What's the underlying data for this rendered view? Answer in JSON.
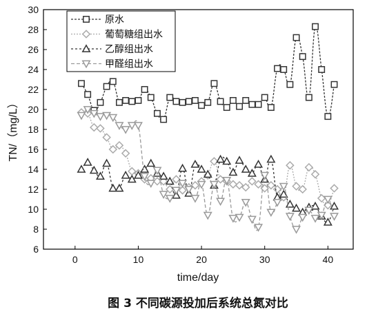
{
  "chart_data": {
    "type": "line",
    "xlabel": "time/day",
    "ylabel": "TN/（mg/L）",
    "xlim": [
      -5,
      44
    ],
    "ylim": [
      6,
      30
    ],
    "xticks": [
      0,
      10,
      20,
      30,
      40
    ],
    "yticks": [
      6,
      8,
      10,
      12,
      14,
      16,
      18,
      20,
      22,
      24,
      26,
      28,
      30
    ],
    "legend_position": "top-left",
    "caption": "图 3  不同碳源投加后系统总氮对比",
    "series": [
      {
        "name": "原水",
        "marker": "square",
        "color": "#333333",
        "dash": "3,2",
        "x": [
          1,
          2,
          3,
          4,
          5,
          6,
          7,
          8,
          9,
          10,
          11,
          12,
          13,
          14,
          15,
          16,
          17,
          18,
          19,
          20,
          21,
          22,
          23,
          24,
          25,
          26,
          27,
          28,
          29,
          30,
          31,
          32,
          33,
          34,
          35,
          36,
          37,
          38,
          39,
          40,
          41
        ],
        "y": [
          22.6,
          21.5,
          19.9,
          20.7,
          22.3,
          22.8,
          20.7,
          20.9,
          20.8,
          20.9,
          22.0,
          21.2,
          19.6,
          19.0,
          21.2,
          20.8,
          20.7,
          20.8,
          20.9,
          20.4,
          20.7,
          22.6,
          20.8,
          20.2,
          20.9,
          20.3,
          20.9,
          20.5,
          20.5,
          21.2,
          20.2,
          24.1,
          24.0,
          22.5,
          27.2,
          25.3,
          21.2,
          28.3,
          24.0,
          19.3,
          22.5
        ]
      },
      {
        "name": "葡萄糖组出水",
        "marker": "diamond",
        "color": "#aaaaaa",
        "dash": "2,2",
        "x": [
          1,
          2,
          3,
          4,
          5,
          6,
          7,
          8,
          9,
          10,
          11,
          12,
          13,
          14,
          15,
          16,
          17,
          18,
          19,
          20,
          21,
          22,
          23,
          24,
          25,
          26,
          27,
          28,
          29,
          30,
          31,
          32,
          33,
          34,
          35,
          36,
          37,
          38,
          39,
          40,
          41
        ],
        "y": [
          19.7,
          19.6,
          18.2,
          18.1,
          17.2,
          16.0,
          16.4,
          15.6,
          13.8,
          13.6,
          13.0,
          13.1,
          12.8,
          12.8,
          12.0,
          13.0,
          11.9,
          12.2,
          12.4,
          12.8,
          13.4,
          14.8,
          13.0,
          12.8,
          12.5,
          12.4,
          12.2,
          12.8,
          12.5,
          12.1,
          12.4,
          12.0,
          11.2,
          14.4,
          12.3,
          12.0,
          14.2,
          13.5,
          11.1,
          10.4,
          12.1
        ]
      },
      {
        "name": "乙醇组出水",
        "marker": "triangle-up",
        "color": "#333333",
        "dash": "3,3",
        "x": [
          1,
          2,
          3,
          4,
          5,
          6,
          7,
          8,
          9,
          10,
          11,
          12,
          13,
          14,
          15,
          16,
          17,
          18,
          19,
          20,
          21,
          22,
          23,
          24,
          25,
          26,
          27,
          28,
          29,
          30,
          31,
          32,
          33,
          34,
          35,
          36,
          37,
          38,
          39,
          40,
          41
        ],
        "y": [
          14.0,
          14.7,
          13.9,
          13.3,
          14.6,
          12.1,
          12.1,
          13.4,
          13.0,
          13.4,
          14.0,
          14.6,
          13.6,
          13.3,
          12.8,
          11.4,
          14.1,
          11.6,
          14.5,
          14.0,
          13.5,
          12.4,
          15.0,
          14.8,
          13.7,
          14.9,
          14.0,
          13.6,
          14.5,
          13.0,
          15.0,
          11.2,
          11.5,
          10.5,
          10.1,
          9.7,
          10.2,
          10.3,
          9.3,
          8.7,
          10.3
        ]
      },
      {
        "name": "甲醛组出水",
        "marker": "triangle-down",
        "color": "#999999",
        "dash": "5,3",
        "x": [
          1,
          2,
          3,
          4,
          5,
          6,
          7,
          8,
          9,
          10,
          11,
          12,
          13,
          14,
          15,
          16,
          17,
          18,
          19,
          20,
          21,
          22,
          23,
          24,
          25,
          26,
          27,
          28,
          29,
          30,
          31,
          32,
          33,
          34,
          35,
          36,
          37,
          38,
          39,
          40,
          41
        ],
        "y": [
          19.4,
          20.0,
          19.6,
          19.3,
          19.4,
          19.2,
          18.4,
          18.0,
          18.4,
          18.4,
          13.3,
          12.6,
          13.9,
          11.5,
          11.1,
          11.9,
          12.6,
          12.0,
          11.1,
          12.5,
          9.4,
          12.5,
          10.8,
          12.9,
          9.1,
          9.2,
          10.7,
          9.0,
          8.2,
          13.4,
          9.7,
          10.7,
          12.3,
          9.3,
          8.0,
          9.2,
          9.9,
          9.1,
          9.4,
          11.0,
          9.3
        ]
      }
    ]
  }
}
